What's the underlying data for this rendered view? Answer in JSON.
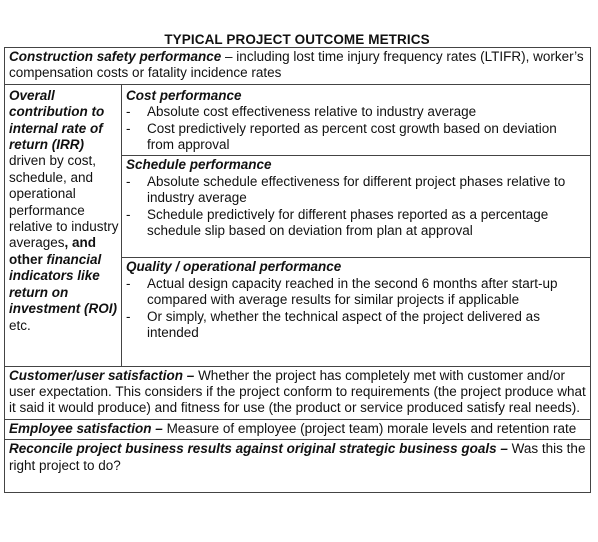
{
  "title": "TYPICAL PROJECT OUTCOME METRICS",
  "construction_safety": {
    "heading": "Construction safety performance",
    "text": " – including lost time injury frequency rates (LTIFR), worker’s compensation costs or fatality incidence rates"
  },
  "left_column": {
    "part1": "Overall contribution to internal rate of return (IRR)",
    "part2": " driven by cost, schedule, and operational performance relative to industry averages",
    "part3": ", and other ",
    "part4": "financial indicators like return on investment (ROI)",
    "part5": " etc."
  },
  "cost": {
    "heading": "Cost performance",
    "items": [
      "Absolute cost effectiveness relative to industry average",
      "Cost predictively reported as percent cost growth based on deviation from approval"
    ]
  },
  "schedule": {
    "heading": "Schedule performance",
    "items": [
      "Absolute schedule effectiveness for different project phases relative to industry average",
      "Schedule predictively for different phases reported as a percentage schedule slip based on deviation from plan at approval"
    ]
  },
  "quality": {
    "heading": "Quality / operational performance",
    "items": [
      "Actual design capacity reached in the second 6 months after start-up compared with average results for similar projects if applicable",
      "Or simply, whether the technical aspect of the project delivered as intended"
    ]
  },
  "customer": {
    "heading": "Customer/user satisfaction –",
    "text": " Whether the project has completely met with customer and/or user expectation. This considers if the project conform to requirements (the project produce what it said it would produce) and fitness for use (the product or service produced satisfy real needs)."
  },
  "employee": {
    "heading": "Employee satisfaction –",
    "text": " Measure of employee (project team) morale levels and retention rate"
  },
  "reconcile": {
    "heading": "Reconcile project business results against original strategic business goals –",
    "text": " Was this the right project to do?"
  }
}
